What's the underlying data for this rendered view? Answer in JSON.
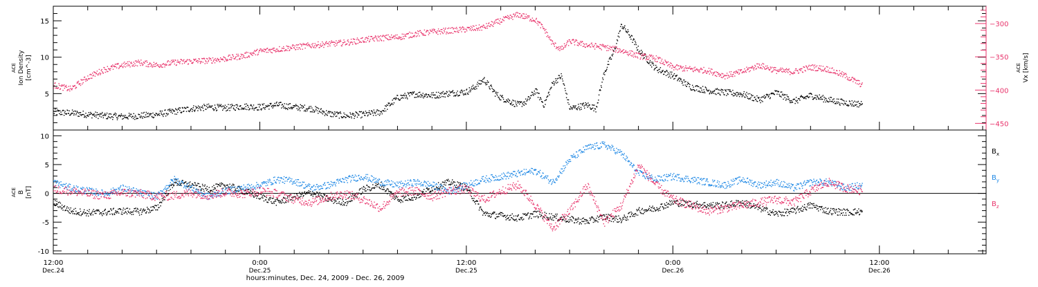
{
  "figure": {
    "x_axis": {
      "tick_labels": [
        {
          "time": "12:00",
          "date": "Dec.24",
          "hours": 0
        },
        {
          "time": "0:00",
          "date": "Dec.25",
          "hours": 12
        },
        {
          "time": "12:00",
          "date": "Dec.25",
          "hours": 24
        },
        {
          "time": "0:00",
          "date": "Dec.26",
          "hours": 36
        },
        {
          "time": "12:00",
          "date": "Dec.26",
          "hours": 48
        }
      ],
      "title": "hours:minutes, Dec. 24, 2009 - Dec. 26, 2009",
      "range_hours": [
        0,
        54.2
      ]
    }
  },
  "chart_data": [
    {
      "type": "scatter",
      "panel": "top",
      "left_axis": {
        "label_lines": [
          "ACE",
          "Ion Density",
          "[cm^-3]"
        ],
        "ticks": [
          5,
          10,
          15
        ],
        "range": [
          0,
          17
        ],
        "color": "#000000"
      },
      "right_axis": {
        "label_lines": [
          "ACE",
          "Vx [km/s]"
        ],
        "ticks": [
          -300,
          -350,
          -400,
          -450
        ],
        "range": [
          -460,
          -274
        ],
        "color": "#e8336b"
      },
      "series": [
        {
          "key": "density",
          "axis": "left",
          "color": "#000000",
          "points": [
            [
              0,
              2.5
            ],
            [
              1,
              2.4
            ],
            [
              2,
              2.2
            ],
            [
              3,
              2.0
            ],
            [
              4,
              1.9
            ],
            [
              5,
              2.0
            ],
            [
              6,
              2.2
            ],
            [
              7,
              2.6
            ],
            [
              8,
              3.0
            ],
            [
              9,
              3.2
            ],
            [
              10,
              3.1
            ],
            [
              11,
              3.3
            ],
            [
              12,
              3.2
            ],
            [
              13,
              3.5
            ],
            [
              14,
              3.2
            ],
            [
              15,
              3.0
            ],
            [
              16,
              2.3
            ],
            [
              17,
              2.0
            ],
            [
              18,
              2.2
            ],
            [
              19,
              2.5
            ],
            [
              20,
              4.5
            ],
            [
              21,
              5.0
            ],
            [
              22,
              4.8
            ],
            [
              23,
              5.1
            ],
            [
              24,
              5.3
            ],
            [
              24.5,
              6.0
            ],
            [
              25,
              7.0
            ],
            [
              25.7,
              5.0
            ],
            [
              26,
              4.5
            ],
            [
              27,
              3.5
            ],
            [
              27.5,
              4.0
            ],
            [
              28,
              5.5
            ],
            [
              28.5,
              3.5
            ],
            [
              29,
              6.5
            ],
            [
              29.5,
              7.5
            ],
            [
              30,
              3.0
            ],
            [
              31,
              3.5
            ],
            [
              31.5,
              3.0
            ],
            [
              32,
              8.0
            ],
            [
              32.5,
              10.5
            ],
            [
              32.7,
              12.0
            ],
            [
              33,
              14.5
            ],
            [
              33.5,
              13.0
            ],
            [
              34,
              11.0
            ],
            [
              35,
              8.5
            ],
            [
              36,
              7.5
            ],
            [
              37,
              6.0
            ],
            [
              38,
              5.5
            ],
            [
              39,
              5.2
            ],
            [
              40,
              5.0
            ],
            [
              41,
              4.2
            ],
            [
              42,
              5.2
            ],
            [
              43,
              4.0
            ],
            [
              44,
              4.8
            ],
            [
              45,
              4.2
            ],
            [
              46,
              3.8
            ],
            [
              47,
              3.6
            ]
          ]
        },
        {
          "key": "vx",
          "axis": "right",
          "color": "#e8336b",
          "points": [
            [
              0,
              -392
            ],
            [
              1,
              -398
            ],
            [
              2,
              -380
            ],
            [
              3,
              -368
            ],
            [
              4,
              -362
            ],
            [
              5,
              -358
            ],
            [
              6,
              -362
            ],
            [
              7,
              -358
            ],
            [
              8,
              -356
            ],
            [
              9,
              -355
            ],
            [
              10,
              -352
            ],
            [
              11,
              -348
            ],
            [
              12,
              -341
            ],
            [
              13,
              -338
            ],
            [
              14,
              -335
            ],
            [
              15,
              -332
            ],
            [
              16,
              -330
            ],
            [
              17,
              -328
            ],
            [
              18,
              -324
            ],
            [
              19,
              -321
            ],
            [
              20,
              -320
            ],
            [
              21,
              -315
            ],
            [
              22,
              -312
            ],
            [
              23,
              -310
            ],
            [
              24,
              -308
            ],
            [
              25,
              -305
            ],
            [
              25.5,
              -300
            ],
            [
              26,
              -295
            ],
            [
              27,
              -286
            ],
            [
              28,
              -294
            ],
            [
              28.5,
              -308
            ],
            [
              29,
              -330
            ],
            [
              29.5,
              -338
            ],
            [
              30,
              -326
            ],
            [
              31,
              -332
            ],
            [
              32,
              -335
            ],
            [
              33,
              -340
            ],
            [
              34,
              -348
            ],
            [
              35,
              -352
            ],
            [
              36,
              -365
            ],
            [
              37,
              -368
            ],
            [
              38,
              -370
            ],
            [
              39,
              -378
            ],
            [
              40,
              -372
            ],
            [
              41,
              -362
            ],
            [
              42,
              -370
            ],
            [
              43,
              -372
            ],
            [
              44,
              -365
            ],
            [
              45,
              -368
            ],
            [
              46,
              -378
            ],
            [
              47,
              -392
            ]
          ]
        }
      ]
    },
    {
      "type": "scatter",
      "panel": "bottom",
      "left_axis": {
        "label_lines": [
          "ACE",
          "B",
          "[nT]"
        ],
        "ticks": [
          -10,
          -5,
          0,
          5,
          10
        ],
        "range": [
          -10.5,
          11
        ],
        "color": "#000000"
      },
      "reference_line_y": 0,
      "legend_position": "right",
      "series": [
        {
          "name": "Bx",
          "name_main": "B",
          "name_sub": "x",
          "color": "#000000",
          "points": [
            [
              0,
              -1.5
            ],
            [
              1,
              -3.0
            ],
            [
              2,
              -3.3
            ],
            [
              3,
              -3.2
            ],
            [
              4,
              -3.0
            ],
            [
              5,
              -3.1
            ],
            [
              6,
              -2.5
            ],
            [
              7,
              2.0
            ],
            [
              8,
              1.5
            ],
            [
              9,
              0.8
            ],
            [
              10,
              1.5
            ],
            [
              11,
              0.5
            ],
            [
              12,
              -0.5
            ],
            [
              13,
              -1.5
            ],
            [
              14,
              -0.5
            ],
            [
              15,
              0.2
            ],
            [
              16,
              -1.0
            ],
            [
              17,
              -1.5
            ],
            [
              18,
              0.8
            ],
            [
              19,
              1.5
            ],
            [
              20,
              -1.0
            ],
            [
              21,
              -0.5
            ],
            [
              22,
              1.0
            ],
            [
              23,
              2.0
            ],
            [
              24,
              1.0
            ],
            [
              25,
              -3.5
            ],
            [
              26,
              -3.8
            ],
            [
              27,
              -4.2
            ],
            [
              28,
              -3.5
            ],
            [
              29,
              -4.0
            ],
            [
              30,
              -4.5
            ],
            [
              31,
              -4.8
            ],
            [
              32,
              -4.0
            ],
            [
              33,
              -4.5
            ],
            [
              34,
              -3.0
            ],
            [
              35,
              -2.5
            ],
            [
              36,
              -1.5
            ],
            [
              37,
              -1.8
            ],
            [
              38,
              -2.0
            ],
            [
              39,
              -2.0
            ],
            [
              40,
              -1.5
            ],
            [
              41,
              -2.5
            ],
            [
              42,
              -3.5
            ],
            [
              43,
              -3.0
            ],
            [
              44,
              -2.0
            ],
            [
              45,
              -3.0
            ],
            [
              46,
              -3.2
            ],
            [
              47,
              -3.1
            ]
          ]
        },
        {
          "name": "By",
          "name_main": "B",
          "name_sub": "y",
          "color": "#1e88e5",
          "points": [
            [
              0,
              2.0
            ],
            [
              1,
              1.0
            ],
            [
              2,
              0.5
            ],
            [
              3,
              0.0
            ],
            [
              4,
              1.0
            ],
            [
              5,
              0.2
            ],
            [
              6,
              -0.5
            ],
            [
              7,
              2.5
            ],
            [
              8,
              1.0
            ],
            [
              9,
              -0.5
            ],
            [
              10,
              0.5
            ],
            [
              11,
              1.0
            ],
            [
              12,
              1.5
            ],
            [
              13,
              2.5
            ],
            [
              14,
              2.2
            ],
            [
              15,
              1.0
            ],
            [
              16,
              1.5
            ],
            [
              17,
              2.5
            ],
            [
              18,
              3.0
            ],
            [
              19,
              2.0
            ],
            [
              20,
              1.5
            ],
            [
              21,
              2.0
            ],
            [
              22,
              1.5
            ],
            [
              23,
              0.5
            ],
            [
              24,
              1.5
            ],
            [
              25,
              2.5
            ],
            [
              26,
              3.0
            ],
            [
              27,
              3.5
            ],
            [
              28,
              4.0
            ],
            [
              29,
              2.0
            ],
            [
              30,
              6.0
            ],
            [
              31,
              8.0
            ],
            [
              32,
              8.5
            ],
            [
              33,
              7.0
            ],
            [
              34,
              3.5
            ],
            [
              35,
              2.5
            ],
            [
              36,
              3.0
            ],
            [
              37,
              2.5
            ],
            [
              38,
              2.0
            ],
            [
              39,
              1.5
            ],
            [
              40,
              2.5
            ],
            [
              41,
              1.5
            ],
            [
              42,
              2.0
            ],
            [
              43,
              1.0
            ],
            [
              44,
              2.0
            ],
            [
              45,
              2.0
            ],
            [
              46,
              1.0
            ],
            [
              47,
              1.5
            ]
          ]
        },
        {
          "name": "Bz",
          "name_main": "B",
          "name_sub": "z",
          "color": "#e8336b",
          "points": [
            [
              0,
              0.8
            ],
            [
              1,
              0.5
            ],
            [
              2,
              0.0
            ],
            [
              3,
              -0.3
            ],
            [
              4,
              0.2
            ],
            [
              5,
              0.0
            ],
            [
              6,
              -0.5
            ],
            [
              7,
              -0.3
            ],
            [
              8,
              0.2
            ],
            [
              9,
              -0.3
            ],
            [
              10,
              0.3
            ],
            [
              11,
              0.0
            ],
            [
              12,
              0.5
            ],
            [
              13,
              0.0
            ],
            [
              14,
              -1.0
            ],
            [
              15,
              -1.5
            ],
            [
              16,
              -0.5
            ],
            [
              17,
              0.0
            ],
            [
              18,
              -1.0
            ],
            [
              19,
              -2.5
            ],
            [
              20,
              0.2
            ],
            [
              21,
              0.5
            ],
            [
              22,
              -0.5
            ],
            [
              23,
              0.5
            ],
            [
              24,
              0.8
            ],
            [
              25,
              -1.0
            ],
            [
              26,
              0.5
            ],
            [
              27,
              1.5
            ],
            [
              28,
              -2.0
            ],
            [
              29,
              -6.0
            ],
            [
              30,
              -3.0
            ],
            [
              31,
              1.5
            ],
            [
              32,
              -5.0
            ],
            [
              33,
              -2.0
            ],
            [
              34,
              5.0
            ],
            [
              35,
              1.5
            ],
            [
              36,
              -1.0
            ],
            [
              37,
              -2.0
            ],
            [
              38,
              -3.0
            ],
            [
              39,
              -2.5
            ],
            [
              40,
              -2.0
            ],
            [
              41,
              -1.5
            ],
            [
              42,
              -1.0
            ],
            [
              43,
              -1.5
            ],
            [
              44,
              0.5
            ],
            [
              45,
              2.0
            ],
            [
              46,
              1.0
            ],
            [
              47,
              0.5
            ]
          ]
        }
      ]
    }
  ]
}
